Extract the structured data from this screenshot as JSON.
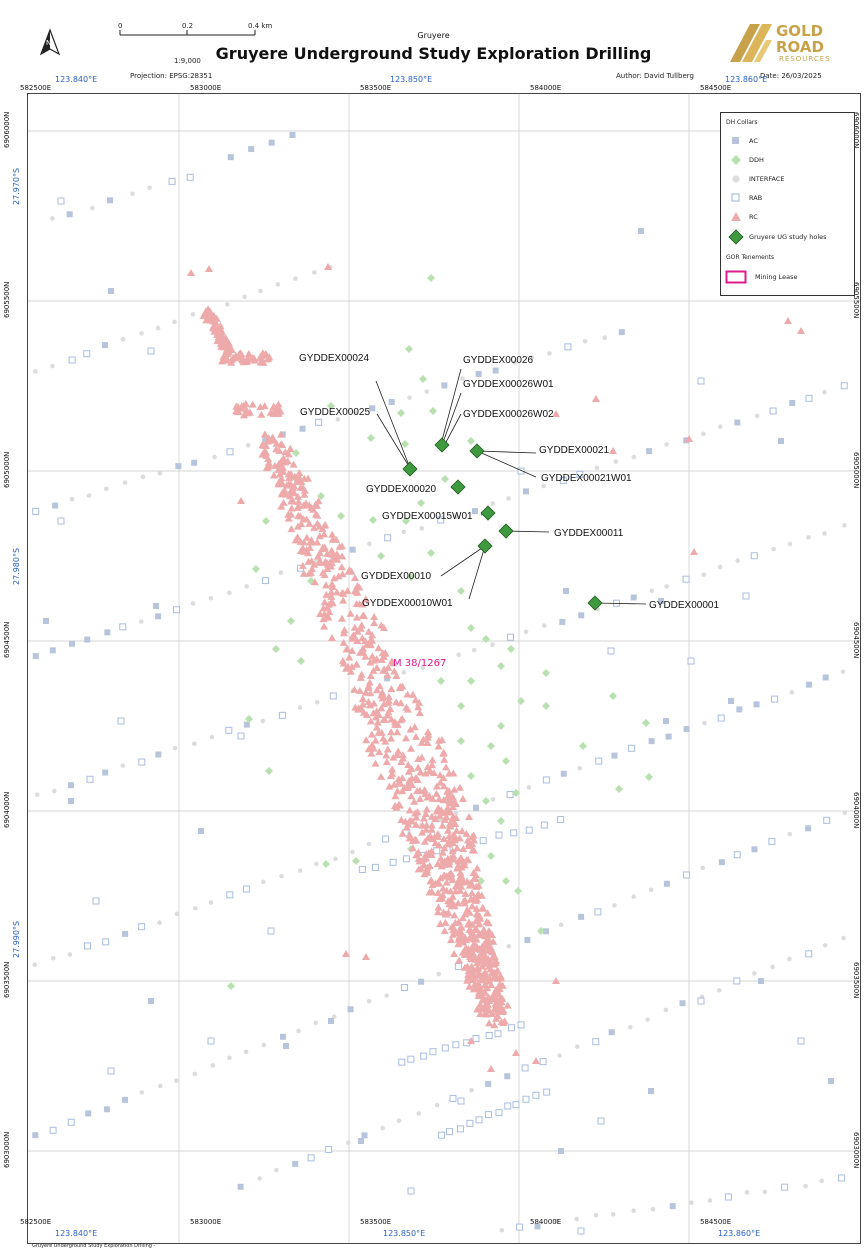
{
  "header": {
    "place": "Gruyere",
    "title": "Gruyere Underground Study Exploration Drilling",
    "scale": "1:9,000",
    "projection": "Projection: EPSG:28351",
    "author": "Author: David Tullberg",
    "date": "Date: 26/03/2025",
    "scalebar_labels": [
      "0",
      "0.2",
      "0.4 km"
    ]
  },
  "logo": {
    "line1": "GOLD",
    "line2": "ROAD",
    "line3": "RESOURCES"
  },
  "north_arrow": "north-arrow-icon",
  "eastings": [
    "582500E",
    "583000E",
    "583500E",
    "584000E",
    "584500E"
  ],
  "northings": [
    "6906000N",
    "6905500N",
    "6905000N",
    "6904500N",
    "6904000N",
    "6903500N",
    "6903000N"
  ],
  "longitudes": [
    "123.840°E",
    "123.850°E",
    "123.860°E"
  ],
  "latitudes": [
    "27.970°S",
    "27.980°S",
    "27.990°S"
  ],
  "legend": {
    "title": "DH Collars",
    "items": [
      {
        "label": "AC",
        "symbol": "square-filled",
        "color": "#b7c4dc"
      },
      {
        "label": "DDH",
        "symbol": "diamond",
        "color": "#b9e0b0"
      },
      {
        "label": "INTERFACE",
        "symbol": "circle",
        "color": "#dcdcdc"
      },
      {
        "label": "RAB",
        "symbol": "square-outline",
        "color": "#a9bde0"
      },
      {
        "label": "RC",
        "symbol": "triangle",
        "color": "#eeaaaa"
      },
      {
        "label": "Gruyere UG study holes",
        "symbol": "diamond-large",
        "color": "#3f9a3f"
      }
    ],
    "tenements_title": "GOR Tenements",
    "tenement_item": "Mining Lease",
    "tenement_color": "#e0198c"
  },
  "mining_lease_label": "M 38/1267",
  "study_holes": [
    "GYDDEX00026",
    "GYDDEX00026W01",
    "GYDDEX00026W02",
    "GYDDEX00024",
    "GYDDEX00025",
    "GYDDEX00021",
    "GYDDEX00021W01",
    "GYDDEX00020",
    "GYDDEX00015W01",
    "GYDDEX00011",
    "GYDDEX00010",
    "GYDDEX00010W01",
    "GYDDEX00001"
  ],
  "footer": "Gruyere Underground Study Exploration Drilling -",
  "colors": {
    "ac": "#b7c4dc",
    "ddh": "#b9e0b0",
    "interface": "#dcdcdc",
    "rab": "#a9bde0",
    "rc": "#eeaaaa",
    "study": "#3f9a3f",
    "grid": "#c8c8c8"
  }
}
